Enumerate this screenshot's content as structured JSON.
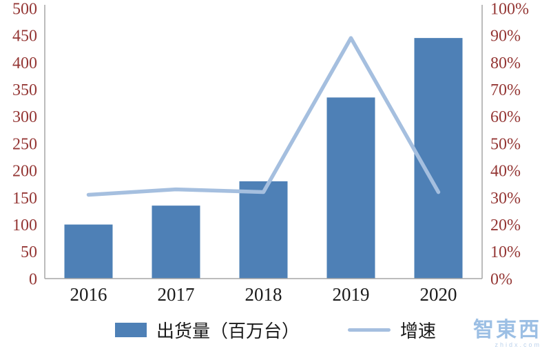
{
  "chart_data": {
    "type": "bar",
    "categories": [
      "2016",
      "2017",
      "2018",
      "2019",
      "2020"
    ],
    "series": [
      {
        "name": "出货量（百万台）",
        "type": "bar",
        "axis": "left",
        "values": [
          100,
          135,
          180,
          335,
          445
        ]
      },
      {
        "name": "增速",
        "type": "line",
        "axis": "right",
        "unit": "%",
        "values": [
          31,
          33,
          32,
          89,
          32
        ]
      }
    ],
    "title": "",
    "xlabel": "",
    "ylabel": "",
    "left_axis": {
      "min": 0,
      "max": 500,
      "step": 50,
      "ticks": [
        "0",
        "50",
        "100",
        "150",
        "200",
        "250",
        "300",
        "350",
        "400",
        "450",
        "500"
      ]
    },
    "right_axis": {
      "min": 0,
      "max": 100,
      "step": 10,
      "ticks": [
        "0%",
        "10%",
        "20%",
        "30%",
        "40%",
        "50%",
        "60%",
        "70%",
        "80%",
        "90%",
        "100%"
      ]
    },
    "grid": false,
    "legend_position": "bottom"
  },
  "colors": {
    "bar": "#4e80b6",
    "line": "#a5bfdf",
    "axis": "#a6a6a6",
    "tick_left": "#943634",
    "tick_right": "#943634",
    "tick_x": "#1a1a1a"
  },
  "watermark": {
    "text": "智東西",
    "subtext": "zhidx.com"
  }
}
